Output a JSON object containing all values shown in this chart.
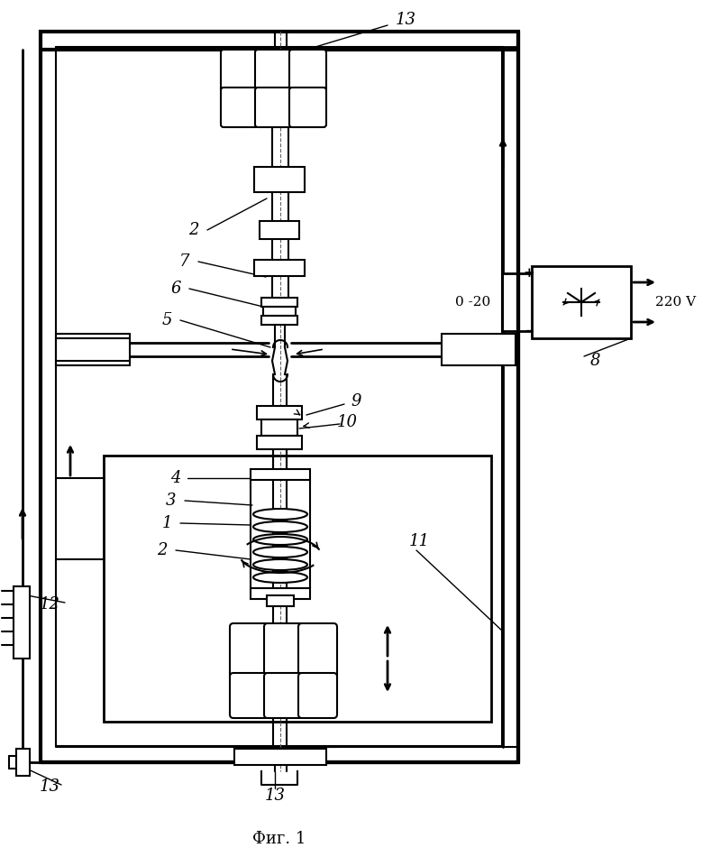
{
  "bg_color": "#ffffff",
  "line_color": "#000000",
  "title": "Фиг. 1",
  "title_fontsize": 13,
  "fig_width": 7.8,
  "fig_height": 9.6,
  "dpi": 100
}
